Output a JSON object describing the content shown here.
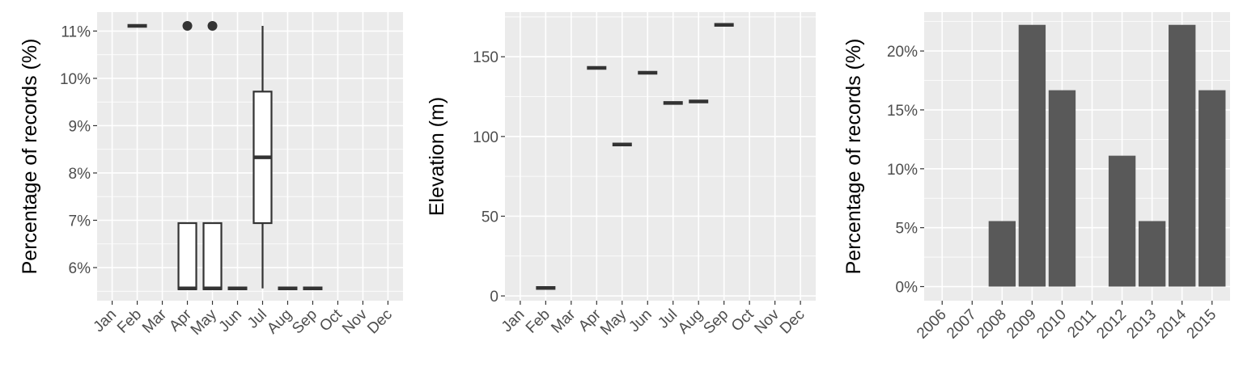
{
  "chart_data": [
    {
      "type": "boxplot",
      "xlabel": "",
      "ylabel": "Percentage of records (%)",
      "categories": [
        "Jan",
        "Feb",
        "Mar",
        "Apr",
        "May",
        "Jun",
        "Jul",
        "Aug",
        "Sep",
        "Oct",
        "Nov",
        "Dec"
      ],
      "y_ticks": [
        6,
        7,
        8,
        9,
        10,
        11
      ],
      "y_tick_labels": [
        "6%",
        "7%",
        "8%",
        "9%",
        "10%",
        "11%"
      ],
      "ylim": [
        5.3,
        11.4
      ],
      "grid": true,
      "boxes": [
        {
          "category": "Feb",
          "min": 11.11,
          "q1": 11.11,
          "median": 11.11,
          "q3": 11.11,
          "max": 11.11,
          "outliers": []
        },
        {
          "category": "Apr",
          "min": 5.56,
          "q1": 5.56,
          "median": 5.56,
          "q3": 6.94,
          "max": 6.94,
          "outliers": [
            11.11
          ]
        },
        {
          "category": "May",
          "min": 5.56,
          "q1": 5.56,
          "median": 5.56,
          "q3": 6.94,
          "max": 6.94,
          "outliers": [
            11.11
          ]
        },
        {
          "category": "Jun",
          "min": 5.56,
          "q1": 5.56,
          "median": 5.56,
          "q3": 5.56,
          "max": 5.56,
          "outliers": []
        },
        {
          "category": "Jul",
          "min": 5.56,
          "q1": 6.94,
          "median": 8.33,
          "q3": 9.72,
          "max": 11.11,
          "outliers": []
        },
        {
          "category": "Aug",
          "min": 5.56,
          "q1": 5.56,
          "median": 5.56,
          "q3": 5.56,
          "max": 5.56,
          "outliers": []
        },
        {
          "category": "Sep",
          "min": 5.56,
          "q1": 5.56,
          "median": 5.56,
          "q3": 5.56,
          "max": 5.56,
          "outliers": []
        }
      ]
    },
    {
      "type": "boxplot",
      "xlabel": "",
      "ylabel": "Elevation (m)",
      "categories": [
        "Jan",
        "Feb",
        "Mar",
        "Apr",
        "May",
        "Jun",
        "Jul",
        "Aug",
        "Sep",
        "Oct",
        "Nov",
        "Dec"
      ],
      "y_ticks": [
        0,
        50,
        100,
        150
      ],
      "y_tick_labels": [
        "0",
        "50",
        "100",
        "150"
      ],
      "ylim": [
        -3,
        178
      ],
      "grid": true,
      "boxes": [
        {
          "category": "Feb",
          "min": 5,
          "q1": 5,
          "median": 5,
          "q3": 5,
          "max": 5,
          "outliers": []
        },
        {
          "category": "Apr",
          "min": 143,
          "q1": 143,
          "median": 143,
          "q3": 143,
          "max": 143,
          "outliers": []
        },
        {
          "category": "May",
          "min": 95,
          "q1": 95,
          "median": 95,
          "q3": 95,
          "max": 95,
          "outliers": []
        },
        {
          "category": "Jun",
          "min": 140,
          "q1": 140,
          "median": 140,
          "q3": 140,
          "max": 140,
          "outliers": []
        },
        {
          "category": "Jul",
          "min": 121,
          "q1": 121,
          "median": 121,
          "q3": 121,
          "max": 121,
          "outliers": []
        },
        {
          "category": "Aug",
          "min": 122,
          "q1": 122,
          "median": 122,
          "q3": 122,
          "max": 122,
          "outliers": []
        },
        {
          "category": "Sep",
          "min": 170,
          "q1": 170,
          "median": 170,
          "q3": 170,
          "max": 170,
          "outliers": []
        }
      ]
    },
    {
      "type": "bar",
      "xlabel": "",
      "ylabel": "Percentage of records (%)",
      "categories": [
        "2006",
        "2007",
        "2008",
        "2009",
        "2010",
        "2011",
        "2012",
        "2013",
        "2014",
        "2015"
      ],
      "values": [
        0,
        0,
        5.56,
        22.22,
        16.67,
        0,
        11.11,
        5.56,
        22.22,
        16.67
      ],
      "y_ticks": [
        0,
        5,
        10,
        15,
        20
      ],
      "y_tick_labels": [
        "0%",
        "5%",
        "10%",
        "15%",
        "20%"
      ],
      "ylim": [
        -1.2,
        23.3
      ],
      "bar_color": "#595959",
      "grid": true
    }
  ]
}
